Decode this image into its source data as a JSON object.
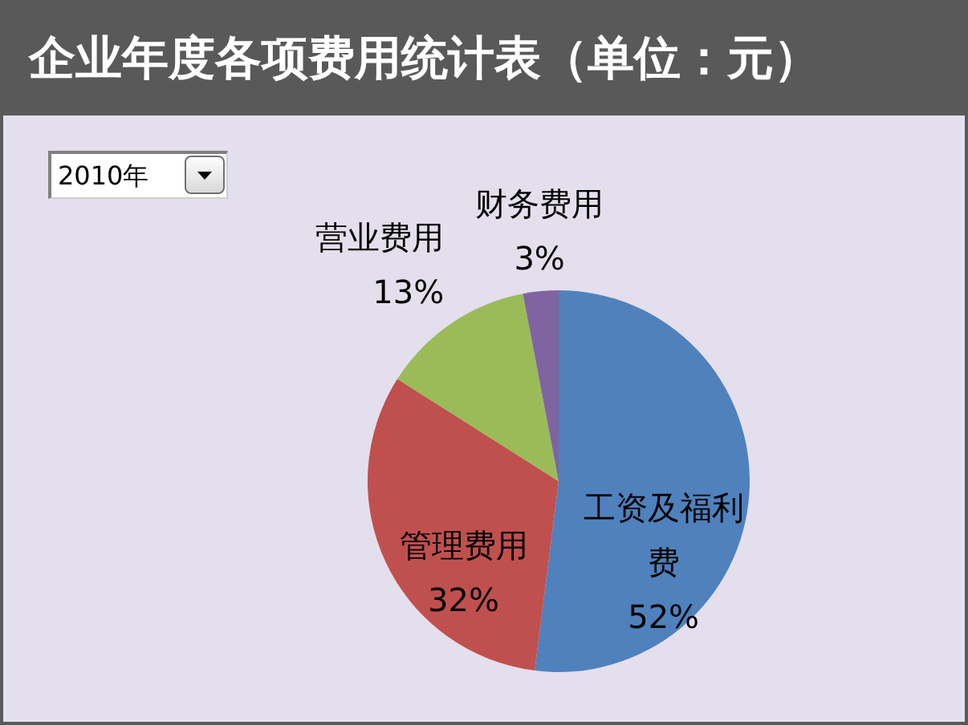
{
  "chart_data": {
    "type": "pie",
    "title": "企业年度各项费用统计表（单位：元）",
    "categories": [
      "工资及福利费",
      "管理费用",
      "营业费用",
      "财务费用"
    ],
    "values": [
      52,
      32,
      13,
      3
    ],
    "colors": [
      "#4f81bd",
      "#c0504d",
      "#9bbb59",
      "#8064a2"
    ],
    "value_labels": [
      "52%",
      "32%",
      "13%",
      "3%"
    ],
    "annotations": [
      "2010年"
    ]
  }
}
